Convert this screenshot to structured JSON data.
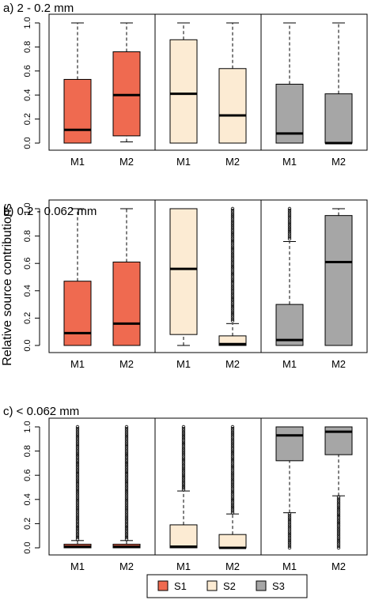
{
  "ylabel": "Relative source contributions",
  "legend": [
    {
      "key": "S1",
      "label": "S1",
      "color": "#ef6a50"
    },
    {
      "key": "S2",
      "label": "S2",
      "color": "#fcebd3"
    },
    {
      "key": "S3",
      "label": "S3",
      "color": "#a6a6a6"
    }
  ],
  "chart_data": [
    {
      "type": "boxplot",
      "title": "a) 2 - 0.2 mm",
      "ylim": [
        0,
        1
      ],
      "yticks": [
        "0.0",
        "0.2",
        "0.4",
        "0.6",
        "0.8",
        "1.0"
      ],
      "groups": [
        {
          "source": "S1",
          "boxes": [
            {
              "label": "M1",
              "min": 0,
              "q1": 0,
              "median": 0.11,
              "q3": 0.53,
              "max": 1.0,
              "outliers": []
            },
            {
              "label": "M2",
              "min": 0.01,
              "q1": 0.06,
              "median": 0.4,
              "q3": 0.76,
              "max": 1.0,
              "outliers": []
            }
          ]
        },
        {
          "source": "S2",
          "boxes": [
            {
              "label": "M1",
              "min": 0,
              "q1": 0,
              "median": 0.41,
              "q3": 0.86,
              "max": 1.0,
              "outliers": []
            },
            {
              "label": "M2",
              "min": 0,
              "q1": 0,
              "median": 0.23,
              "q3": 0.62,
              "max": 1.0,
              "outliers": []
            }
          ]
        },
        {
          "source": "S3",
          "boxes": [
            {
              "label": "M1",
              "min": 0,
              "q1": 0,
              "median": 0.08,
              "q3": 0.49,
              "max": 1.0,
              "outliers": []
            },
            {
              "label": "M2",
              "min": 0,
              "q1": 0,
              "median": 0.0,
              "q3": 0.41,
              "max": 1.0,
              "outliers": []
            }
          ]
        }
      ]
    },
    {
      "type": "boxplot",
      "title": "b) 0.2 - 0.062 mm",
      "ylim": [
        0,
        1
      ],
      "yticks": [
        "0.0",
        "0.2",
        "0.4",
        "0.6",
        "0.8",
        "1.0"
      ],
      "groups": [
        {
          "source": "S1",
          "boxes": [
            {
              "label": "M1",
              "min": 0,
              "q1": 0,
              "median": 0.09,
              "q3": 0.47,
              "max": 1.0,
              "outliers": []
            },
            {
              "label": "M2",
              "min": 0,
              "q1": 0,
              "median": 0.16,
              "q3": 0.61,
              "max": 1.0,
              "outliers": []
            }
          ]
        },
        {
          "source": "S2",
          "boxes": [
            {
              "label": "M1",
              "min": 0,
              "q1": 0.08,
              "median": 0.56,
              "q3": 1.0,
              "max": 1.0,
              "outliers": []
            },
            {
              "label": "M2",
              "min": 0,
              "q1": 0,
              "median": 0.01,
              "q3": 0.07,
              "max": 0.16,
              "outliers": [
                [
                  0.18,
                  1.0
                ]
              ]
            }
          ]
        },
        {
          "source": "S3",
          "boxes": [
            {
              "label": "M1",
              "min": 0,
              "q1": 0,
              "median": 0.04,
              "q3": 0.3,
              "max": 0.76,
              "outliers": [
                [
                  0.78,
                  1.0
                ]
              ]
            },
            {
              "label": "M2",
              "min": 0,
              "q1": 0,
              "median": 0.61,
              "q3": 0.95,
              "max": 1.0,
              "outliers": []
            }
          ]
        }
      ]
    },
    {
      "type": "boxplot",
      "title": "c) < 0.062 mm",
      "ylim": [
        0,
        1
      ],
      "yticks": [
        "0.0",
        "0.2",
        "0.4",
        "0.6",
        "0.8",
        "1.0"
      ],
      "groups": [
        {
          "source": "S1",
          "boxes": [
            {
              "label": "M1",
              "min": 0,
              "q1": 0,
              "median": 0.01,
              "q3": 0.03,
              "max": 0.06,
              "outliers": [
                [
                  0.07,
                  1.0
                ]
              ]
            },
            {
              "label": "M2",
              "min": 0,
              "q1": 0,
              "median": 0.01,
              "q3": 0.03,
              "max": 0.06,
              "outliers": [
                [
                  0.07,
                  1.0
                ]
              ]
            }
          ]
        },
        {
          "source": "S2",
          "boxes": [
            {
              "label": "M1",
              "min": 0,
              "q1": 0,
              "median": 0.01,
              "q3": 0.19,
              "max": 0.47,
              "outliers": [
                [
                  0.48,
                  1.0
                ]
              ]
            },
            {
              "label": "M2",
              "min": 0,
              "q1": 0,
              "median": 0.0,
              "q3": 0.11,
              "max": 0.28,
              "outliers": [
                [
                  0.29,
                  1.0
                ]
              ]
            }
          ]
        },
        {
          "source": "S3",
          "boxes": [
            {
              "label": "M1",
              "min": 0.29,
              "q1": 0.72,
              "median": 0.93,
              "q3": 1.0,
              "max": 1.0,
              "outliers": [
                [
                  0.0,
                  0.28
                ]
              ]
            },
            {
              "label": "M2",
              "min": 0.43,
              "q1": 0.77,
              "median": 0.96,
              "q3": 1.0,
              "max": 1.0,
              "outliers": [
                [
                  0.0,
                  0.42
                ]
              ]
            }
          ]
        }
      ]
    }
  ]
}
